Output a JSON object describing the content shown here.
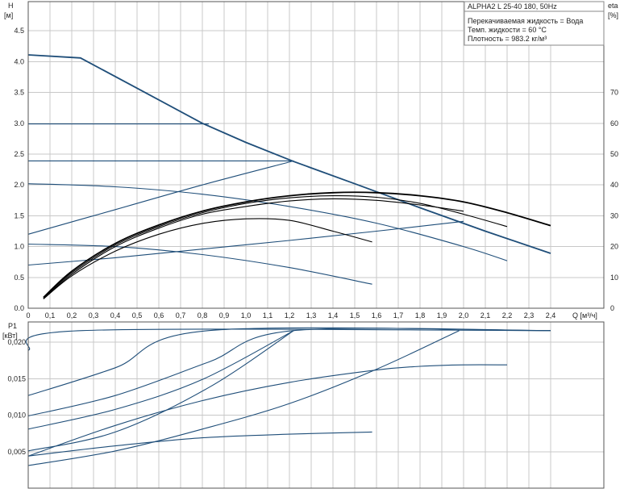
{
  "chart_data": [
    {
      "type": "line",
      "title": "ALPHA2 L 25-40 180, 50Hz",
      "info_lines": [
        "Перекачиваемая жидкость = Вода",
        "Темп. жидкости = 60 °C",
        "Плотность = 983.2 кг/м³"
      ],
      "ylabel": "H",
      "ylabel_unit": "[м]",
      "y2label": "eta",
      "y2label_unit": "[%]",
      "xlabel": "Q [м³/ч]",
      "xlim": [
        0,
        2.5
      ],
      "ylim": [
        0,
        4.5
      ],
      "y2lim": [
        0,
        80
      ],
      "xticks": [
        "0",
        "0,1",
        "0,2",
        "0,3",
        "0,4",
        "0,5",
        "0,6",
        "0,7",
        "0,8",
        "0,9",
        "1,0",
        "1,1",
        "1,2",
        "1,3",
        "1,4",
        "1,5",
        "1,6",
        "1,7",
        "1,8",
        "1,9",
        "2,0",
        "2,1",
        "2,2",
        "2,3",
        "2,4"
      ],
      "yticks": [
        "0.0",
        "0.5",
        "1.0",
        "1.5",
        "2.0",
        "2.5",
        "3.0",
        "3.5",
        "4.0",
        "4.5"
      ],
      "y2ticks": [
        "0",
        "10",
        "20",
        "30",
        "40",
        "50",
        "60",
        "70"
      ],
      "grid": true,
      "head_series": [
        {
          "x": [
            0,
            0.24,
            0.5,
            0.8,
            1.0,
            1.22,
            1.5,
            1.8,
            2.1,
            2.4
          ],
          "y": [
            4.11,
            4.06,
            3.57,
            3.0,
            2.69,
            2.38,
            2.02,
            1.63,
            1.25,
            0.89
          ]
        },
        {
          "x": [
            0,
            0.83
          ],
          "y": [
            2.99,
            2.99
          ]
        },
        {
          "x": [
            0,
            1.22
          ],
          "y": [
            2.39,
            2.39
          ]
        },
        {
          "x": [
            0,
            0.4,
            0.8,
            1.22
          ],
          "y": [
            1.2,
            1.6,
            2.0,
            2.39
          ]
        },
        {
          "x": [
            0,
            0.4,
            0.8,
            1.2,
            1.6,
            2.0,
            2.2
          ],
          "y": [
            2.02,
            1.97,
            1.85,
            1.65,
            1.38,
            1.0,
            0.77
          ]
        },
        {
          "x": [
            0,
            0.4,
            0.8,
            1.2,
            1.58
          ],
          "y": [
            1.04,
            1.0,
            0.87,
            0.66,
            0.39
          ]
        },
        {
          "x": [
            0,
            0.4,
            0.8,
            1.2,
            1.6,
            2.0
          ],
          "y": [
            0.7,
            0.82,
            0.96,
            1.1,
            1.25,
            1.41
          ]
        }
      ],
      "eta_series": [
        {
          "x": [
            0.07,
            0.2,
            0.4,
            0.6,
            0.8,
            1.0,
            1.2,
            1.4,
            1.6,
            1.8,
            2.0,
            2.2,
            2.4
          ],
          "y": [
            3.5,
            12.0,
            21.0,
            27.0,
            31.5,
            34.5,
            36.5,
            37.5,
            37.5,
            36.5,
            34.5,
            31.0,
            26.8
          ]
        },
        {
          "x": [
            0.07,
            0.2,
            0.4,
            0.6,
            0.8,
            1.0,
            1.2,
            1.4,
            1.6,
            1.8,
            2.0,
            2.2
          ],
          "y": [
            3.3,
            11.5,
            20.5,
            26.5,
            31.0,
            34.0,
            35.8,
            36.5,
            36.0,
            34.0,
            30.5,
            26.5
          ]
        },
        {
          "x": [
            0.07,
            0.2,
            0.4,
            0.6,
            0.8,
            1.0,
            1.2,
            1.4,
            1.6,
            1.8,
            2.0
          ],
          "y": [
            3.1,
            11.0,
            20.0,
            26.0,
            30.5,
            33.0,
            34.8,
            35.5,
            35.0,
            33.5,
            31.5
          ]
        },
        {
          "x": [
            0.07,
            0.2,
            0.4,
            0.6,
            0.8,
            1.0,
            1.2,
            1.4,
            1.58
          ],
          "y": [
            3.0,
            10.5,
            18.5,
            24.0,
            27.5,
            29.0,
            28.5,
            25.0,
            21.5
          ]
        }
      ]
    },
    {
      "type": "line",
      "ylabel": "P1",
      "ylabel_unit": "[кВт]",
      "xlim": [
        0,
        2.5
      ],
      "ylim": [
        0,
        0.0225
      ],
      "yticks": [
        "0,005",
        "0,010",
        "0,015",
        "0,020"
      ],
      "grid": true,
      "power_series": [
        {
          "x": [
            0,
            0.25,
            2.4
          ],
          "y": [
            0.0189,
            0.0216,
            0.0216
          ]
        },
        {
          "x": [
            0,
            0.4,
            0.83,
            2.4
          ],
          "y": [
            0.0127,
            0.0165,
            0.0216,
            0.0216
          ]
        },
        {
          "x": [
            0,
            0.4,
            0.83,
            1.22,
            2.4
          ],
          "y": [
            0.0099,
            0.0127,
            0.0173,
            0.0216,
            0.0216
          ]
        },
        {
          "x": [
            0,
            0.4,
            0.83,
            1.22
          ],
          "y": [
            0.0051,
            0.0077,
            0.0138,
            0.0216
          ]
        },
        {
          "x": [
            0,
            0.4,
            0.8,
            1.22
          ],
          "y": [
            0.0081,
            0.0108,
            0.0149,
            0.0216
          ]
        },
        {
          "x": [
            0,
            0.4,
            0.8,
            1.2,
            1.6,
            1.8,
            2.0,
            2.2
          ],
          "y": [
            0.0044,
            0.0086,
            0.012,
            0.0145,
            0.0162,
            0.0167,
            0.0169,
            0.0169
          ]
        },
        {
          "x": [
            0,
            0.4,
            0.8,
            1.2,
            1.6,
            1.98
          ],
          "y": [
            0.0031,
            0.0051,
            0.0081,
            0.0116,
            0.0163,
            0.0216
          ]
        },
        {
          "x": [
            0,
            0.4,
            0.8,
            1.2,
            1.58
          ],
          "y": [
            0.0044,
            0.0058,
            0.0069,
            0.0074,
            0.0077
          ]
        }
      ]
    }
  ]
}
